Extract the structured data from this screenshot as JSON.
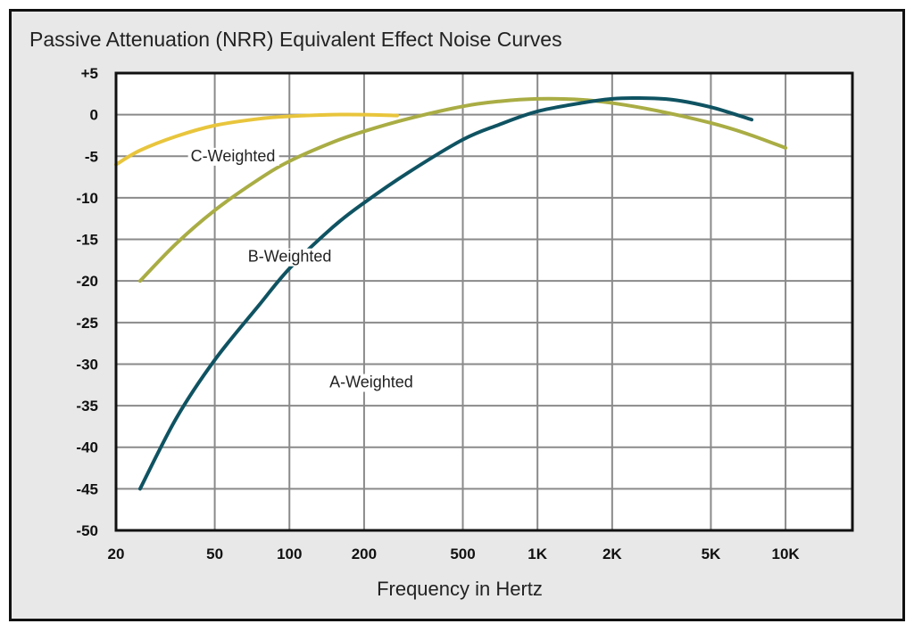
{
  "chart_data": {
    "type": "line",
    "title": "Passive Attenuation (NRR) Equivalent Effect Noise Curves",
    "xlabel": "Frequency in Hertz",
    "ylabel": "",
    "xscale": "log",
    "xlim": [
      20,
      18600
    ],
    "ylim": [
      -50,
      5
    ],
    "grid": true,
    "x_ticks": [
      {
        "value": 20,
        "label": "20"
      },
      {
        "value": 50,
        "label": "50"
      },
      {
        "value": 100,
        "label": "100"
      },
      {
        "value": 200,
        "label": "200"
      },
      {
        "value": 500,
        "label": "500"
      },
      {
        "value": 1000,
        "label": "1K"
      },
      {
        "value": 2000,
        "label": "2K"
      },
      {
        "value": 5000,
        "label": "5K"
      },
      {
        "value": 10000,
        "label": "10K"
      }
    ],
    "y_ticks": [
      {
        "value": 5,
        "label": "+5"
      },
      {
        "value": 0,
        "label": "0"
      },
      {
        "value": -5,
        "label": "-5"
      },
      {
        "value": -10,
        "label": "-10"
      },
      {
        "value": -15,
        "label": "-15"
      },
      {
        "value": -20,
        "label": "-20"
      },
      {
        "value": -25,
        "label": "-25"
      },
      {
        "value": -30,
        "label": "-30"
      },
      {
        "value": -35,
        "label": "-35"
      },
      {
        "value": -40,
        "label": "-40"
      },
      {
        "value": -45,
        "label": "-45"
      },
      {
        "value": -50,
        "label": "-50"
      }
    ],
    "series": [
      {
        "name": "C-Weighted",
        "color": "#e8c53c",
        "x": [
          20,
          25,
          35,
          50,
          75,
          100,
          150,
          200,
          272
        ],
        "y": [
          -6,
          -4.3,
          -2.6,
          -1.3,
          -0.5,
          -0.2,
          0,
          0,
          -0.1
        ],
        "label_at": [
          40,
          -5.6
        ]
      },
      {
        "name": "B-Weighted",
        "color": "#a9ad44",
        "x": [
          25,
          35,
          50,
          75,
          100,
          150,
          200,
          300,
          500,
          700,
          1000,
          1500,
          2000,
          3000,
          5000,
          7000,
          10000
        ],
        "y": [
          -20,
          -15.5,
          -11.5,
          -7.8,
          -5.6,
          -3.3,
          -2,
          -0.5,
          1,
          1.6,
          1.9,
          1.8,
          1.4,
          0.5,
          -1,
          -2.3,
          -4
        ],
        "label_at": [
          68,
          -17.7
        ]
      },
      {
        "name": "A-Weighted",
        "color": "#0f5362",
        "x": [
          25,
          35,
          50,
          75,
          100,
          150,
          200,
          300,
          500,
          700,
          1000,
          1500,
          2000,
          2500,
          3500,
          5000,
          7300
        ],
        "y": [
          -45,
          -36.5,
          -29.5,
          -23,
          -18.5,
          -13.5,
          -10.6,
          -7,
          -3,
          -1.2,
          0.4,
          1.4,
          1.9,
          2,
          1.8,
          0.9,
          -0.6
        ],
        "label_at": [
          145,
          -32.8
        ]
      }
    ]
  }
}
